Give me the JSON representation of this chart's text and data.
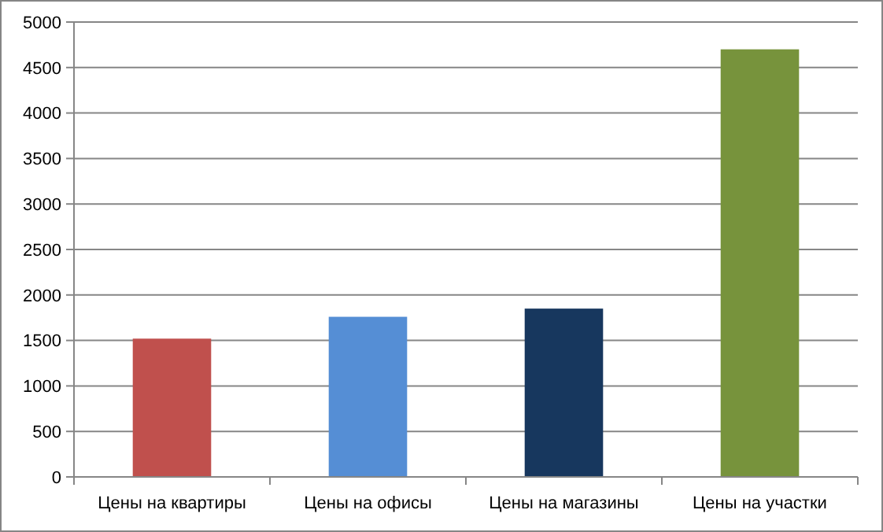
{
  "chart_data": {
    "type": "bar",
    "categories": [
      "Цены на квартиры",
      "Цены на офисы",
      "Цены на магазины",
      "Цены на участки"
    ],
    "values": [
      1520,
      1760,
      1850,
      4700
    ],
    "colors": [
      "#c0504d",
      "#558ed5",
      "#17375e",
      "#77933c"
    ],
    "ylim": [
      0,
      5000
    ],
    "yticks": [
      0,
      500,
      1000,
      1500,
      2000,
      2500,
      3000,
      3500,
      4000,
      4500,
      5000
    ],
    "grid": "y"
  }
}
